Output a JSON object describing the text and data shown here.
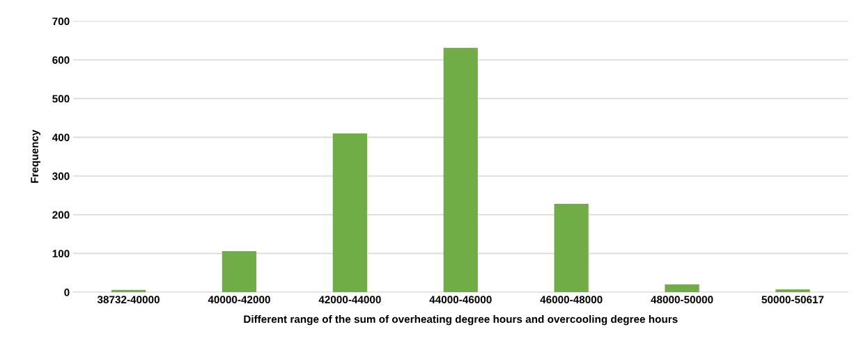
{
  "chart_data": {
    "type": "bar",
    "categories": [
      "38732-40000",
      "40000-42000",
      "42000-44000",
      "44000-46000",
      "46000-48000",
      "48000-50000",
      "50000-50617"
    ],
    "values": [
      6,
      106,
      410,
      631,
      228,
      20,
      7
    ],
    "color": "#70ad47",
    "xlabel": "Different range of the sum of overheating degree hours and overcooling degree hours",
    "ylabel": "Frequency",
    "ylim": [
      0,
      700
    ],
    "yticks": [
      0,
      100,
      200,
      300,
      400,
      500,
      600,
      700
    ],
    "grid": "y"
  }
}
